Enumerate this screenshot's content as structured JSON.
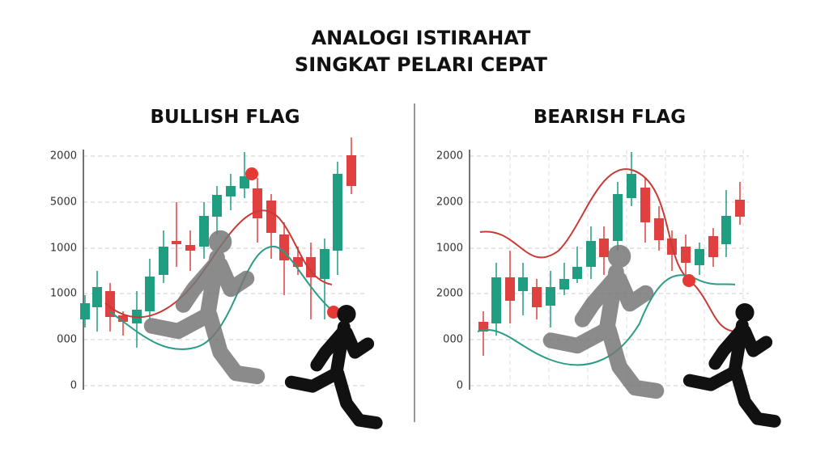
{
  "title": [
    "ANALOGI ISTIRAHAT",
    "SINGKAT PELARI CEPAT"
  ],
  "panels": [
    {
      "heading": "BULLISH FLAG",
      "y_axis_labels": [
        "2000",
        "5000",
        "1000",
        "1000",
        "000",
        "0"
      ]
    },
    {
      "heading": "BEARISH FLAG",
      "y_axis_labels": [
        "2000",
        "2000",
        "1000",
        "2000",
        "000",
        "0"
      ]
    }
  ]
}
